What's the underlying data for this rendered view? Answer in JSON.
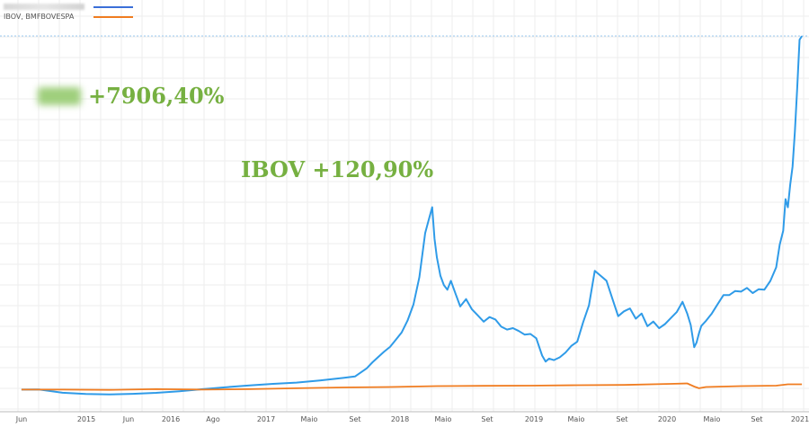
{
  "chart_data": {
    "type": "line",
    "legend": [
      {
        "name": "",
        "color": "#3a6fd8",
        "obscured": true
      },
      {
        "name": "IBOV, BMFBOVESPA",
        "color": "#f07c20"
      }
    ],
    "annotations": [
      {
        "text": "+7906,40%",
        "obscured_prefix": true,
        "color": "#76b041"
      },
      {
        "text": "IBOV +120,90%",
        "color": "#76b041"
      }
    ],
    "x_ticks": [
      "Jun",
      "2015",
      "Jun",
      "2016",
      "Ago",
      "2017",
      "Maio",
      "Set",
      "2018",
      "Maio",
      "Set",
      "2019",
      "Maio",
      "Set",
      "2020",
      "Maio",
      "Set",
      "2021"
    ],
    "xlim": [
      2014.42,
      2021.15
    ],
    "ylim": [
      -500,
      8000
    ],
    "grid": true,
    "series": [
      {
        "color": "#2f9be8",
        "x": [
          2014.45,
          2014.6,
          2014.8,
          2015.0,
          2015.2,
          2015.4,
          2015.6,
          2015.8,
          2016.0,
          2016.2,
          2016.4,
          2016.6,
          2016.8,
          2017.0,
          2017.2,
          2017.3,
          2017.4,
          2017.45,
          2017.5,
          2017.55,
          2017.6,
          2017.65,
          2017.7,
          2017.75,
          2017.8,
          2017.85,
          2017.9,
          2017.93,
          2017.96,
          2017.98,
          2018.0,
          2018.03,
          2018.06,
          2018.09,
          2018.12,
          2018.16,
          2018.2,
          2018.25,
          2018.3,
          2018.35,
          2018.4,
          2018.45,
          2018.5,
          2018.55,
          2018.6,
          2018.65,
          2018.7,
          2018.75,
          2018.8,
          2018.85,
          2018.9,
          2018.93,
          2018.96,
          2019.0,
          2019.05,
          2019.1,
          2019.15,
          2019.2,
          2019.25,
          2019.3,
          2019.35,
          2019.4,
          2019.45,
          2019.5,
          2019.55,
          2019.6,
          2019.65,
          2019.7,
          2019.75,
          2019.8,
          2019.85,
          2019.9,
          2019.95,
          2020.0,
          2020.05,
          2020.1,
          2020.14,
          2020.17,
          2020.2,
          2020.22,
          2020.24,
          2020.26,
          2020.3,
          2020.35,
          2020.4,
          2020.45,
          2020.5,
          2020.55,
          2020.6,
          2020.65,
          2020.7,
          2020.75,
          2020.8,
          2020.85,
          2020.9,
          2020.93,
          2020.96,
          2020.98,
          2021.0,
          2021.02,
          2021.04,
          2021.06,
          2021.08,
          2021.1,
          2021.12
        ],
        "y": [
          0,
          20,
          -40,
          -60,
          -70,
          -60,
          -50,
          -30,
          0,
          30,
          60,
          90,
          120,
          180,
          250,
          300,
          500,
          650,
          780,
          900,
          1000,
          1150,
          1300,
          1550,
          1900,
          2500,
          3500,
          3800,
          4100,
          3400,
          3000,
          2600,
          2400,
          2300,
          2500,
          2200,
          1900,
          2050,
          1800,
          1650,
          1500,
          1600,
          1550,
          1400,
          1350,
          1400,
          1350,
          1280,
          1300,
          1200,
          800,
          650,
          700,
          650,
          700,
          800,
          950,
          1050,
          1500,
          1900,
          2700,
          2600,
          2500,
          2100,
          1700,
          1800,
          1850,
          1600,
          1700,
          1400,
          1500,
          1350,
          1450,
          1600,
          1750,
          2000,
          1750,
          1500,
          1000,
          1100,
          1300,
          1450,
          1550,
          1700,
          1900,
          2100,
          2100,
          2200,
          2200,
          2300,
          2200,
          2300,
          2300,
          2500,
          2800,
          3300,
          3600,
          4300,
          4100,
          4600,
          5000,
          5800,
          6800,
          7900,
          8000
        ]
      },
      {
        "color": "#f07c20",
        "x": [
          2014.45,
          2014.8,
          2015.2,
          2015.6,
          2016.0,
          2016.4,
          2016.8,
          2017.2,
          2017.6,
          2018.0,
          2018.4,
          2018.8,
          2019.2,
          2019.6,
          2020.0,
          2020.14,
          2020.2,
          2020.24,
          2020.3,
          2020.6,
          2020.9,
          2021.0,
          2021.12
        ],
        "y": [
          0,
          0,
          -5,
          10,
          0,
          10,
          30,
          50,
          60,
          80,
          85,
          90,
          100,
          105,
          130,
          140,
          70,
          30,
          60,
          80,
          90,
          120,
          120
        ]
      }
    ]
  }
}
